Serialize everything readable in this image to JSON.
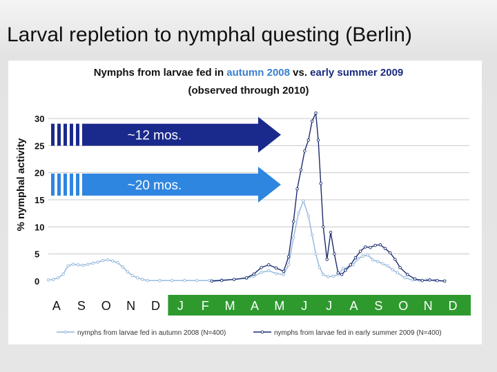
{
  "slide_title": "Larval repletion to nymphal questing (Berlin)",
  "chart_data": {
    "type": "line",
    "title_parts": [
      {
        "text": "Nymphs from larvae fed in ",
        "color": "#111111"
      },
      {
        "text": "autumn 2008",
        "color": "#3a7fd0"
      },
      {
        "text": " vs. ",
        "color": "#111111"
      },
      {
        "text": "early summer 2009",
        "color": "#1a2a7c"
      }
    ],
    "subtitle": "(observed through 2010)",
    "ylabel": "% nymphal activity",
    "ylim": [
      0,
      30
    ],
    "y_ticks": [
      0,
      5,
      10,
      15,
      20,
      25,
      30
    ],
    "grid": "horizontal",
    "month_labels": [
      "A",
      "S",
      "O",
      "N",
      "D",
      "J",
      "F",
      "M",
      "A",
      "M",
      "J",
      "J",
      "A",
      "S",
      "O",
      "N",
      "D"
    ],
    "month_label_colors": [
      "#111111",
      "#111111",
      "#111111",
      "#111111",
      "#111111",
      "#ffffff",
      "#ffffff",
      "#ffffff",
      "#ffffff",
      "#ffffff",
      "#ffffff",
      "#ffffff",
      "#ffffff",
      "#ffffff",
      "#ffffff",
      "#ffffff",
      "#ffffff"
    ],
    "month_band_colors": {
      "2008": "#ffffff",
      "2010": "#2e9a2e"
    },
    "annotations": [
      {
        "label": "~12 mos.",
        "color": "#1a2a8c",
        "y_value": 27
      },
      {
        "label": "~20 mos.",
        "color": "#2f86e0",
        "y_value": 17.8
      }
    ],
    "series": [
      {
        "name": "nymphs from larvae fed in autumn 2008 (N=400)",
        "color": "#8fb4dc",
        "x": [
          0,
          0.2,
          0.4,
          0.6,
          0.8,
          1.0,
          1.2,
          1.4,
          1.6,
          1.8,
          2.0,
          2.2,
          2.4,
          2.6,
          2.8,
          3.0,
          3.2,
          3.4,
          3.6,
          3.8,
          4.0,
          4.5,
          5,
          5.5,
          6,
          6.5,
          7,
          7.5,
          8,
          8.3,
          8.6,
          8.9,
          9.2,
          9.5,
          9.7,
          9.9,
          10.1,
          10.3,
          10.5,
          10.65,
          10.8,
          10.95,
          11.1,
          11.3,
          11.5,
          11.7,
          11.9,
          12.1,
          12.3,
          12.5,
          12.7,
          12.9,
          13.1,
          13.3,
          13.5,
          13.7,
          13.9,
          14.1,
          14.4,
          14.7,
          15.0,
          15.3,
          15.6,
          16.0
        ],
        "y": [
          0.2,
          0.3,
          0.6,
          1.3,
          2.8,
          3.1,
          3.0,
          2.9,
          3.1,
          3.3,
          3.5,
          3.8,
          3.9,
          3.7,
          3.4,
          2.6,
          1.7,
          1.0,
          0.6,
          0.3,
          0.1,
          0.1,
          0.1,
          0.1,
          0.1,
          0.1,
          0.2,
          0.3,
          0.5,
          0.9,
          1.6,
          1.9,
          1.4,
          1.2,
          3.0,
          8.0,
          12.5,
          14.8,
          12.0,
          8.5,
          5.0,
          2.5,
          1.2,
          0.8,
          0.9,
          1.2,
          2.3,
          2.5,
          3.0,
          4.1,
          4.6,
          4.8,
          3.9,
          3.6,
          3.2,
          2.8,
          2.1,
          1.5,
          0.6,
          0.2,
          0.1,
          0.2,
          0.1,
          0.0
        ]
      },
      {
        "name": "nymphs from larvae fed in early summer 2009 (N=400)",
        "color": "#1a2a6c",
        "x": [
          6.6,
          7,
          7.5,
          8,
          8.3,
          8.6,
          8.9,
          9.2,
          9.5,
          9.7,
          9.9,
          10.05,
          10.2,
          10.35,
          10.5,
          10.65,
          10.8,
          10.9,
          11.0,
          11.1,
          11.25,
          11.4,
          11.55,
          11.7,
          11.85,
          12.0,
          12.2,
          12.4,
          12.6,
          12.8,
          13.0,
          13.2,
          13.4,
          13.6,
          13.8,
          14.0,
          14.2,
          14.5,
          14.8,
          15.1,
          15.4,
          15.7,
          16.0
        ],
        "y": [
          0.0,
          0.1,
          0.3,
          0.6,
          1.3,
          2.5,
          3.0,
          2.4,
          1.8,
          4.5,
          11.0,
          17.0,
          20.5,
          24.0,
          26.0,
          29.5,
          31.0,
          26.0,
          18.0,
          10.0,
          4.0,
          9.0,
          5.0,
          1.5,
          1.2,
          2.0,
          3.0,
          4.3,
          5.5,
          6.3,
          6.2,
          6.6,
          6.7,
          6.0,
          5.2,
          4.0,
          2.5,
          1.2,
          0.4,
          0.1,
          0.2,
          0.1,
          0.0
        ]
      }
    ]
  }
}
